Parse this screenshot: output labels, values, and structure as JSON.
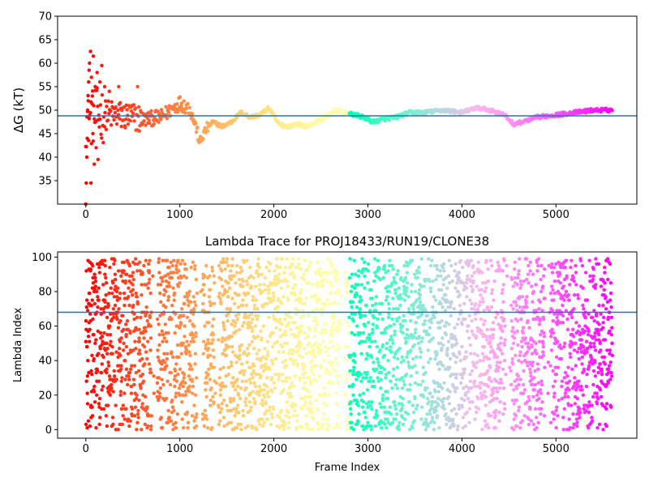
{
  "chart_data": [
    {
      "type": "scatter",
      "title": "",
      "xlabel": "",
      "ylabel": "ΔG (kT)",
      "xlim": [
        -300,
        5860
      ],
      "ylim": [
        30,
        70
      ],
      "xticks": [
        0,
        1000,
        2000,
        3000,
        4000,
        5000
      ],
      "yticks": [
        35,
        40,
        45,
        50,
        55,
        60,
        65,
        70
      ],
      "hline": 48.8,
      "colormap": "rainbow",
      "color_by": "frame index (red at 0 → violet at ~5600)",
      "trace_knots": [
        [
          0,
          48
        ],
        [
          150,
          49
        ],
        [
          300,
          49
        ],
        [
          500,
          48.5
        ],
        [
          600,
          48
        ],
        [
          800,
          48.5
        ],
        [
          900,
          50
        ],
        [
          1000,
          51.5
        ],
        [
          1100,
          50.5
        ],
        [
          1180,
          46
        ],
        [
          1210,
          43
        ],
        [
          1280,
          46
        ],
        [
          1350,
          47.5
        ],
        [
          1450,
          46.5
        ],
        [
          1550,
          47.5
        ],
        [
          1650,
          49.5
        ],
        [
          1750,
          48.5
        ],
        [
          1850,
          49
        ],
        [
          1950,
          50.5
        ],
        [
          2050,
          47
        ],
        [
          2150,
          46.5
        ],
        [
          2250,
          47
        ],
        [
          2350,
          46.5
        ],
        [
          2450,
          47.5
        ],
        [
          2550,
          48.5
        ],
        [
          2650,
          50
        ],
        [
          2750,
          49.5
        ],
        [
          2850,
          49
        ],
        [
          2950,
          48.5
        ],
        [
          3050,
          47.5
        ],
        [
          3150,
          48
        ],
        [
          3300,
          48.5
        ],
        [
          3450,
          49.5
        ],
        [
          3600,
          49.5
        ],
        [
          3800,
          50
        ],
        [
          4000,
          49.5
        ],
        [
          4150,
          50.5
        ],
        [
          4300,
          50
        ],
        [
          4450,
          49
        ],
        [
          4550,
          47
        ],
        [
          4650,
          47.5
        ],
        [
          4800,
          48.5
        ],
        [
          5000,
          49
        ],
        [
          5200,
          49.5
        ],
        [
          5400,
          50
        ],
        [
          5600,
          50
        ]
      ],
      "outliers": [
        [
          0,
          30
        ],
        [
          5,
          34.5
        ],
        [
          10,
          40
        ],
        [
          15,
          44
        ],
        [
          20,
          50
        ],
        [
          25,
          52
        ],
        [
          30,
          56
        ],
        [
          35,
          58.5
        ],
        [
          40,
          60
        ],
        [
          50,
          62.5
        ],
        [
          55,
          34.5
        ],
        [
          60,
          57
        ],
        [
          70,
          53
        ],
        [
          75,
          45
        ],
        [
          80,
          61.5
        ],
        [
          90,
          38.5
        ],
        [
          100,
          55
        ],
        [
          110,
          42
        ],
        [
          120,
          58
        ],
        [
          130,
          39.5
        ],
        [
          150,
          56
        ],
        [
          170,
          59.5
        ],
        [
          200,
          55
        ],
        [
          250,
          54
        ],
        [
          350,
          55
        ],
        [
          550,
          55
        ]
      ]
    },
    {
      "type": "scatter",
      "title": "Lambda Trace for PROJ18433/RUN19/CLONE38",
      "xlabel": "Frame Index",
      "ylabel": "Lambda Index",
      "xlim": [
        -300,
        5860
      ],
      "ylim": [
        -5,
        103
      ],
      "xticks": [
        0,
        1000,
        2000,
        3000,
        4000,
        5000
      ],
      "yticks": [
        0,
        20,
        40,
        60,
        80,
        100
      ],
      "hline": 68,
      "colormap": "rainbow",
      "color_by": "frame index (red at 0 → violet at ~5600)",
      "frame_range": [
        0,
        5600
      ],
      "lambda_range": [
        0,
        99
      ],
      "sparse_frame_bands": [
        [
          700,
          760
        ],
        [
          1180,
          1240
        ],
        [
          1370,
          1410
        ],
        [
          2700,
          2760
        ],
        [
          4460,
          4520
        ],
        [
          4880,
          4940
        ]
      ]
    }
  ]
}
